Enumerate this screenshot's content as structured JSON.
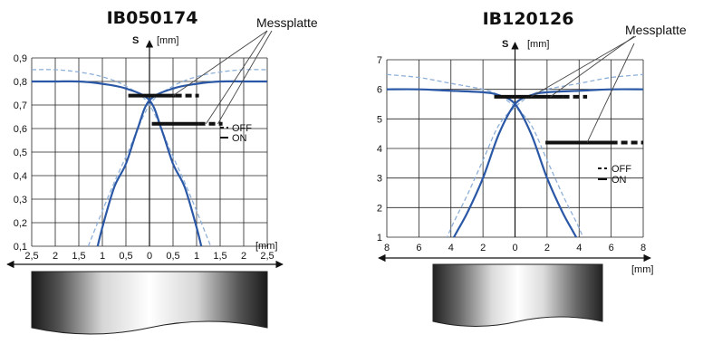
{
  "chart_data": [
    {
      "type": "line",
      "title": "IB050174",
      "ylabel": "S",
      "yunit": "[mm]",
      "xunit": "[mm]",
      "annotation": "Messplatte",
      "xlim": [
        -2.5,
        2.5
      ],
      "ylim": [
        0.1,
        0.9
      ],
      "xtick_labels": [
        "2,5",
        "2",
        "1,5",
        "1",
        "0,5",
        "0",
        "0,5",
        "1",
        "1,5",
        "2",
        "2,5"
      ],
      "ytick_labels": [
        "0,1",
        "0,2",
        "0,3",
        "0,4",
        "0,5",
        "0,6",
        "0,7",
        "0,8",
        "0,9"
      ],
      "legend": [
        "OFF",
        "ON"
      ],
      "legend_placement": "right",
      "grid": true,
      "series": [
        {
          "style": "ON",
          "points": [
            [
              -2.5,
              0.8
            ],
            [
              -2.0,
              0.8
            ],
            [
              -1.5,
              0.8
            ],
            [
              -1.0,
              0.79
            ],
            [
              -0.5,
              0.77
            ],
            [
              0.0,
              0.72
            ],
            [
              0.25,
              0.6
            ],
            [
              0.5,
              0.45
            ],
            [
              0.75,
              0.35
            ],
            [
              1.0,
              0.18
            ],
            [
              1.1,
              0.1
            ]
          ]
        },
        {
          "style": "ON",
          "points": [
            [
              -1.1,
              0.1
            ],
            [
              -1.0,
              0.18
            ],
            [
              -0.75,
              0.35
            ],
            [
              -0.5,
              0.45
            ],
            [
              -0.25,
              0.6
            ],
            [
              0.0,
              0.72
            ],
            [
              0.5,
              0.77
            ],
            [
              1.0,
              0.79
            ],
            [
              1.5,
              0.8
            ],
            [
              2.0,
              0.8
            ],
            [
              2.5,
              0.8
            ]
          ]
        },
        {
          "style": "OFF",
          "points": [
            [
              -2.5,
              0.85
            ],
            [
              -2.0,
              0.85
            ],
            [
              -1.5,
              0.84
            ],
            [
              -1.0,
              0.82
            ],
            [
              -0.5,
              0.78
            ],
            [
              0.0,
              0.7
            ],
            [
              0.5,
              0.48
            ],
            [
              0.75,
              0.37
            ],
            [
              1.0,
              0.25
            ],
            [
              1.2,
              0.15
            ],
            [
              1.3,
              0.1
            ]
          ]
        },
        {
          "style": "OFF",
          "points": [
            [
              -1.3,
              0.1
            ],
            [
              -1.2,
              0.15
            ],
            [
              -1.0,
              0.25
            ],
            [
              -0.75,
              0.37
            ],
            [
              -0.5,
              0.48
            ],
            [
              0.0,
              0.7
            ],
            [
              0.5,
              0.78
            ],
            [
              1.0,
              0.82
            ],
            [
              1.5,
              0.84
            ],
            [
              2.0,
              0.85
            ],
            [
              2.5,
              0.85
            ]
          ]
        }
      ],
      "plates": [
        {
          "x_start": -0.45,
          "x_split": 0.55,
          "x_end": 1.05,
          "y": 0.74
        },
        {
          "x_start": 0.05,
          "x_split": 1.05,
          "x_end": 1.55,
          "y": 0.62
        }
      ]
    },
    {
      "type": "line",
      "title": "IB120126",
      "ylabel": "S",
      "yunit": "[mm]",
      "xunit": "[mm]",
      "annotation": "Messplatte",
      "xlim": [
        -8,
        8
      ],
      "ylim": [
        1,
        7
      ],
      "xtick_labels": [
        "8",
        "6",
        "4",
        "2",
        "0",
        "2",
        "4",
        "6",
        "8"
      ],
      "ytick_labels": [
        "1",
        "2",
        "3",
        "4",
        "5",
        "6",
        "7"
      ],
      "legend": [
        "OFF",
        "ON"
      ],
      "legend_placement": "right",
      "grid": true,
      "series": [
        {
          "style": "ON",
          "points": [
            [
              -8,
              6.0
            ],
            [
              -6,
              6.0
            ],
            [
              -4,
              5.95
            ],
            [
              -2,
              5.9
            ],
            [
              -1,
              5.8
            ],
            [
              0,
              5.5
            ],
            [
              1,
              4.5
            ],
            [
              2,
              3.0
            ],
            [
              3,
              1.8
            ],
            [
              4,
              0.8
            ],
            [
              4.5,
              0.0
            ]
          ]
        },
        {
          "style": "ON",
          "points": [
            [
              -4.5,
              0.0
            ],
            [
              -4,
              0.8
            ],
            [
              -3,
              1.8
            ],
            [
              -2,
              3.0
            ],
            [
              -1,
              4.5
            ],
            [
              0,
              5.5
            ],
            [
              1,
              5.8
            ],
            [
              2,
              5.9
            ],
            [
              4,
              5.95
            ],
            [
              6,
              6.0
            ],
            [
              8,
              6.0
            ]
          ]
        },
        {
          "style": "OFF",
          "points": [
            [
              -8,
              6.5
            ],
            [
              -6,
              6.4
            ],
            [
              -4,
              6.2
            ],
            [
              -2,
              6.0
            ],
            [
              -1,
              5.8
            ],
            [
              0,
              5.4
            ],
            [
              1,
              4.8
            ],
            [
              2,
              3.6
            ],
            [
              3,
              2.4
            ],
            [
              4,
              1.3
            ],
            [
              5,
              0.0
            ]
          ]
        },
        {
          "style": "OFF",
          "points": [
            [
              -5,
              0.0
            ],
            [
              -4,
              1.3
            ],
            [
              -3,
              2.4
            ],
            [
              -2,
              3.6
            ],
            [
              -1,
              4.8
            ],
            [
              0,
              5.4
            ],
            [
              1,
              5.8
            ],
            [
              2,
              6.0
            ],
            [
              4,
              6.2
            ],
            [
              6,
              6.4
            ],
            [
              8,
              6.5
            ]
          ]
        }
      ],
      "plates": [
        {
          "x_start": -1.3,
          "x_split": 3.0,
          "x_end": 4.5,
          "y": 5.75
        },
        {
          "x_start": 1.9,
          "x_split": 6.0,
          "x_end": 8.0,
          "y": 4.2
        }
      ]
    }
  ]
}
